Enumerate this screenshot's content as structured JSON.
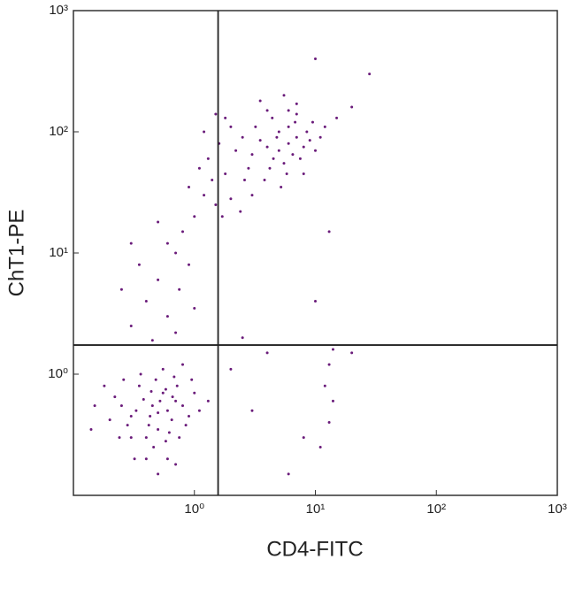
{
  "chart_data": {
    "type": "scatter",
    "x_label": "CD4-FITC",
    "y_label": "ChT1-PE",
    "x_log": true,
    "y_log": true,
    "color": "#6a1b7a",
    "xlim": [
      0.1,
      1000
    ],
    "ylim": [
      0.1,
      1000
    ],
    "xticks": [
      {
        "value": 1,
        "label": "10⁰"
      },
      {
        "value": 10,
        "label": "10¹"
      },
      {
        "value": 100,
        "label": "10²"
      },
      {
        "value": 1000,
        "label": "10³"
      }
    ],
    "yticks": [
      {
        "value": 1,
        "label": "10⁰"
      },
      {
        "value": 10,
        "label": "10¹"
      },
      {
        "value": 100,
        "label": "10²"
      },
      {
        "value": 1000,
        "label": "10³"
      }
    ],
    "quadrant_lines": {
      "x": 1.57,
      "y": 1.74
    },
    "x": [
      0.45,
      0.5,
      0.38,
      0.6,
      0.55,
      0.3,
      0.42,
      0.7,
      0.35,
      0.5,
      0.25,
      0.65,
      0.48,
      0.8,
      0.4,
      0.58,
      0.33,
      0.72,
      0.22,
      0.9,
      0.52,
      0.44,
      0.62,
      0.28,
      1.0,
      0.36,
      0.55,
      0.2,
      0.75,
      0.46,
      0.18,
      0.68,
      0.3,
      0.85,
      0.4,
      0.6,
      1.1,
      0.24,
      0.15,
      0.95,
      0.5,
      0.7,
      0.32,
      1.3,
      0.14,
      0.8,
      0.26,
      0.58,
      0.43,
      0.66,
      5,
      6,
      4.5,
      7,
      5.5,
      4,
      6.5,
      8,
      3.5,
      5,
      6,
      4.2,
      7.5,
      3,
      9,
      5.8,
      4.8,
      3.8,
      6.8,
      2.8,
      2.5,
      8.5,
      10,
      3.2,
      4.4,
      7,
      2.2,
      5.2,
      9.5,
      2,
      11,
      3,
      6,
      12,
      1.8,
      4,
      8,
      2.6,
      15,
      5.5,
      3.5,
      7,
      20,
      10,
      28,
      0.3,
      0.4,
      0.5,
      0.6,
      0.7,
      0.8,
      0.9,
      1.0,
      1.2,
      0.6,
      1.4,
      0.5,
      1.1,
      0.9,
      1.3,
      1.5,
      0.35,
      0.75,
      1.7,
      2,
      1.8,
      2.4,
      1.6,
      1.2,
      0.45,
      0.7,
      0.25,
      1.0,
      0.3,
      1.5,
      13,
      12,
      14,
      13,
      11,
      6,
      3,
      2,
      4,
      14,
      8,
      13,
      10,
      2.5,
      20
    ],
    "values": [
      0.55,
      0.48,
      0.62,
      0.5,
      0.7,
      0.45,
      0.38,
      0.6,
      0.8,
      0.35,
      0.55,
      0.42,
      0.9,
      0.55,
      0.3,
      0.28,
      0.5,
      0.8,
      0.65,
      0.45,
      0.6,
      0.72,
      0.33,
      0.38,
      0.7,
      1.0,
      1.1,
      0.42,
      0.3,
      0.25,
      0.8,
      0.95,
      0.3,
      0.38,
      0.2,
      0.2,
      0.5,
      0.3,
      0.55,
      0.9,
      0.15,
      0.18,
      0.2,
      0.6,
      0.35,
      1.2,
      0.9,
      0.75,
      0.45,
      0.65,
      70,
      80,
      60,
      90,
      55,
      75,
      65,
      75,
      85,
      100,
      110,
      50,
      60,
      65,
      85,
      45,
      90,
      40,
      120,
      50,
      90,
      100,
      70,
      110,
      130,
      140,
      70,
      35,
      120,
      110,
      90,
      30,
      150,
      110,
      130,
      150,
      45,
      40,
      130,
      200,
      180,
      170,
      160,
      400,
      300,
      2.5,
      4,
      6,
      3,
      10,
      15,
      8,
      20,
      30,
      12,
      40,
      18,
      50,
      35,
      60,
      25,
      8,
      5,
      20,
      28,
      45,
      22,
      80,
      100,
      1.9,
      2.2,
      5,
      3.5,
      12,
      140,
      1.2,
      0.8,
      0.6,
      0.4,
      0.25,
      0.15,
      0.5,
      1.1,
      1.5,
      1.6,
      0.3,
      15,
      4,
      2,
      1.5
    ]
  }
}
